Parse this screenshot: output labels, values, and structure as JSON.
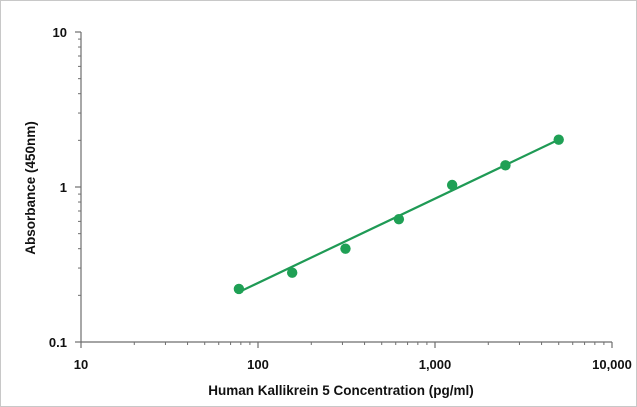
{
  "chart_data": {
    "type": "scatter",
    "title": "",
    "xlabel": "Human Kallikrein 5 Concentration (pg/ml)",
    "ylabel": "Absorbance (450nm)",
    "x_scale": "log",
    "y_scale": "log",
    "xlim": [
      10,
      10000
    ],
    "ylim": [
      0.1,
      10
    ],
    "x_ticks": [
      10,
      100,
      1000,
      10000
    ],
    "x_tick_labels": [
      "10",
      "100",
      "1,000",
      "10,000"
    ],
    "y_ticks": [
      0.1,
      1,
      10
    ],
    "y_tick_labels": [
      "0.1",
      "1",
      "10"
    ],
    "grid": false,
    "legend": "none",
    "series": [
      {
        "x": [
          78,
          156,
          312,
          625,
          1250,
          2500,
          5000
        ],
        "y": [
          0.22,
          0.28,
          0.4,
          0.62,
          1.03,
          1.38,
          2.02
        ]
      }
    ],
    "trendline": {
      "x": [
        78,
        5000
      ],
      "y": [
        0.21,
        2.02
      ]
    },
    "colors": {
      "points": "#1fa055",
      "line": "#1f9a55",
      "axis": "#6e6e6e"
    }
  }
}
